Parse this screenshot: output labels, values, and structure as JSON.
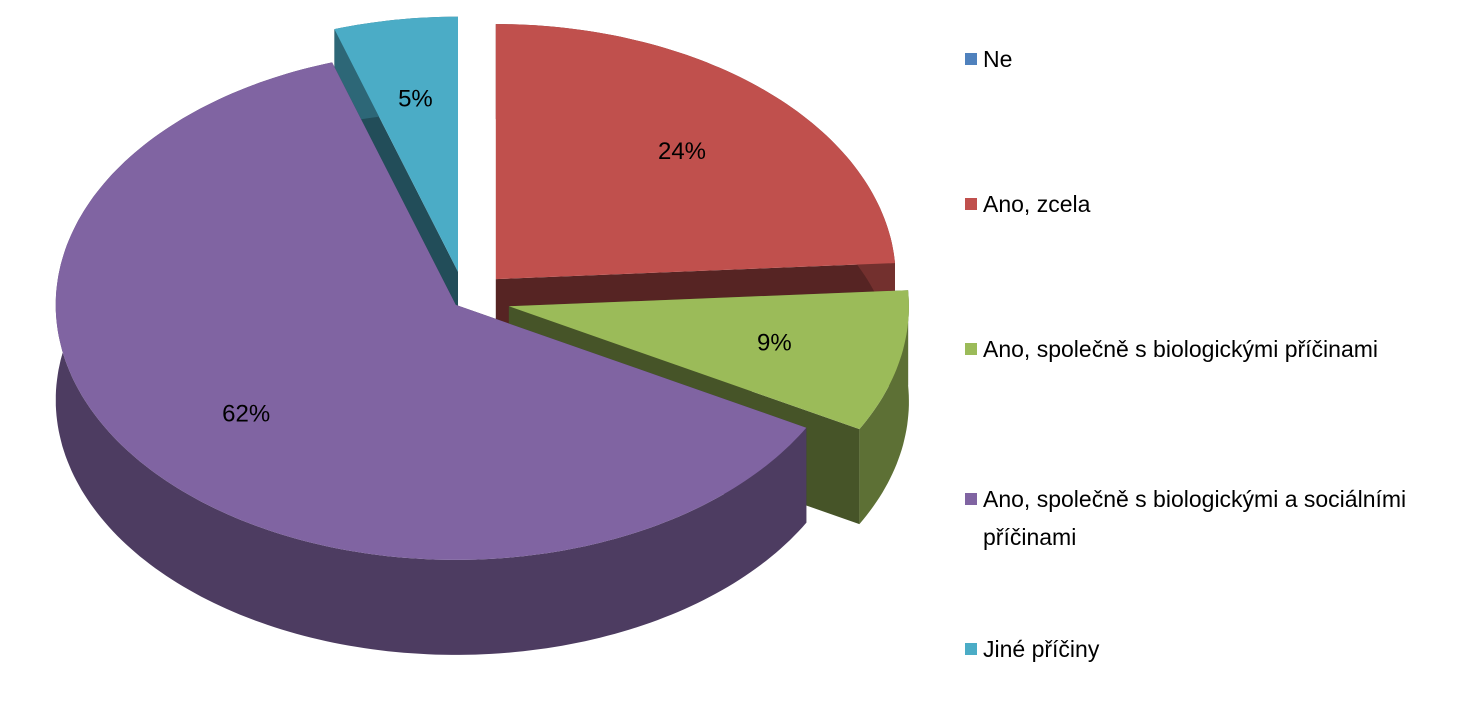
{
  "chart_data": {
    "type": "pie",
    "categories": [
      "Ne",
      "Ano, zcela",
      "Ano, společně s biologickými příčinami",
      "Ano, společně s biologickými a sociálními příčinami",
      "Jiné příčiny"
    ],
    "values": [
      0,
      24,
      9,
      62,
      5
    ],
    "value_labels": [
      null,
      "24%",
      "9%",
      "62%",
      "5%"
    ],
    "colors": [
      "#4f81bd",
      "#c0504d",
      "#9bbb59",
      "#8064a2",
      "#4bacc6"
    ],
    "legend": "right"
  }
}
